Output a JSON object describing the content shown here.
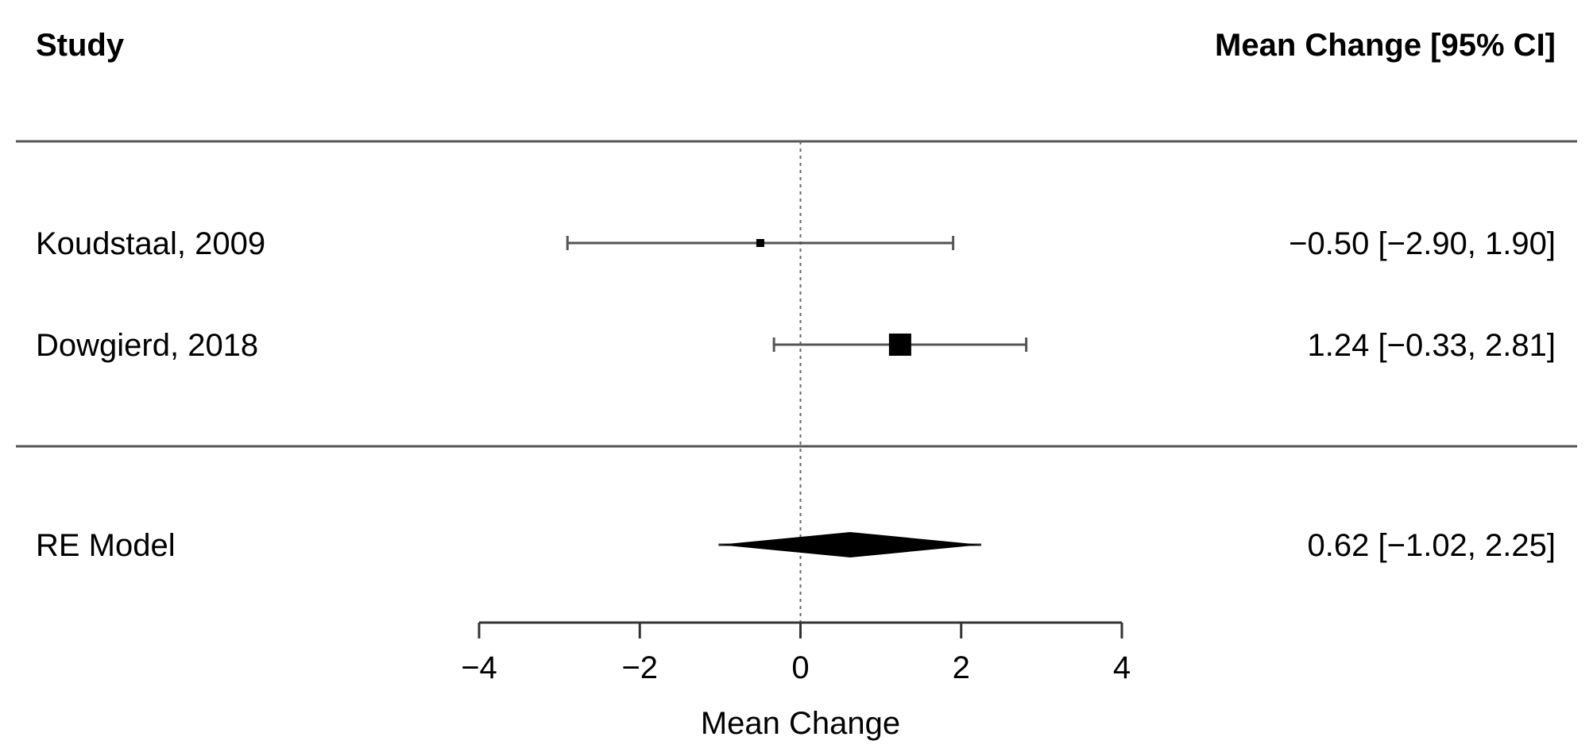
{
  "header": {
    "study_label": "Study",
    "effect_label": "Mean Change [95% CI]"
  },
  "chart_data": {
    "type": "forest",
    "xlabel": "Mean Change",
    "xlim": [
      -4,
      4
    ],
    "xticks": [
      -4,
      -2,
      0,
      2,
      4
    ],
    "xtick_labels": [
      "−4",
      "−2",
      "0",
      "2",
      "4"
    ],
    "reference_line": 0,
    "studies": [
      {
        "name": "Koudstaal, 2009",
        "estimate": -0.5,
        "lower": -2.9,
        "upper": 1.9,
        "label": "−0.50 [−2.90, 1.90]",
        "weight": "small"
      },
      {
        "name": "Dowgierd, 2018",
        "estimate": 1.24,
        "lower": -0.33,
        "upper": 2.81,
        "label": "1.24 [−0.33, 2.81]",
        "weight": "large"
      }
    ],
    "summary": {
      "name": "RE Model",
      "estimate": 0.62,
      "lower": -1.02,
      "upper": 2.25,
      "label": "0.62 [−1.02, 2.25]"
    }
  }
}
